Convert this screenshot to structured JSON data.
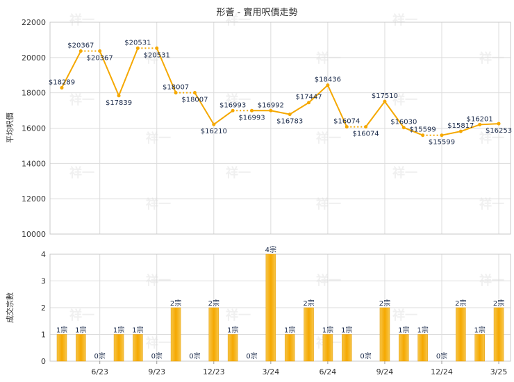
{
  "chart_data": [
    {
      "type": "line",
      "title": "形薈 - 實用呎價走勢",
      "ylabel": "平均呎價",
      "ylim": [
        10000,
        22000
      ],
      "yticks": [
        10000,
        12000,
        14000,
        16000,
        18000,
        20000,
        22000
      ],
      "grid": true,
      "color": "#f5a800",
      "label_prefix": "$",
      "values": [
        18289,
        20367,
        20367,
        17839,
        20531,
        20531,
        18007,
        18007,
        16210,
        16993,
        16993,
        16992,
        16783,
        17447,
        18436,
        16074,
        16074,
        17510,
        16030,
        15599,
        15599,
        15817,
        16201,
        16253
      ],
      "estimated_flags": [
        false,
        false,
        true,
        false,
        false,
        true,
        false,
        true,
        false,
        false,
        true,
        false,
        false,
        false,
        false,
        false,
        true,
        false,
        false,
        false,
        true,
        false,
        false,
        false
      ],
      "label_position": [
        "above",
        "above",
        "below",
        "below",
        "above",
        "below",
        "above",
        "below",
        "below",
        "above",
        "below",
        "above",
        "below",
        "above",
        "above",
        "above",
        "below",
        "above",
        "above",
        "above",
        "below",
        "above",
        "above",
        "below"
      ]
    },
    {
      "type": "bar",
      "ylabel": "成交宗數",
      "ylim": [
        0,
        4
      ],
      "yticks": [
        0,
        1,
        2,
        3,
        4
      ],
      "grid": true,
      "color": "#f5a800",
      "value_suffix": "宗",
      "values": [
        1,
        1,
        0,
        1,
        1,
        0,
        2,
        0,
        2,
        1,
        0,
        4,
        1,
        2,
        1,
        1,
        0,
        2,
        1,
        1,
        0,
        2,
        1,
        2
      ]
    }
  ],
  "x_axis": {
    "tick_labels": [
      "6/23",
      "9/23",
      "12/23",
      "3/24",
      "6/24",
      "9/24",
      "12/24",
      "3/25"
    ],
    "tick_positions": [
      2,
      5,
      8,
      11,
      14,
      17,
      20,
      23
    ]
  },
  "watermark": "祥一"
}
